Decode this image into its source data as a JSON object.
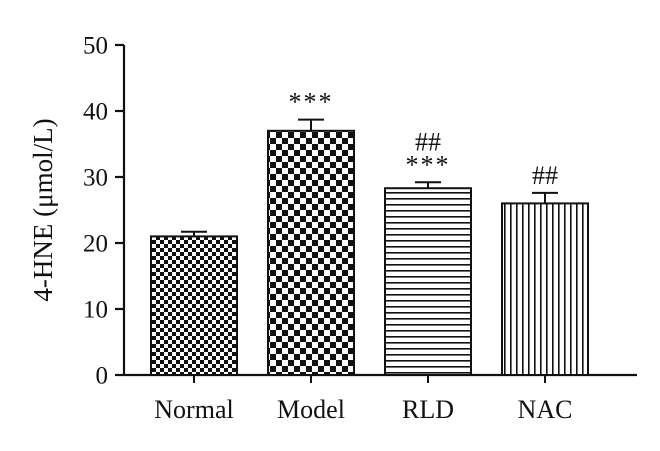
{
  "chart_data": {
    "type": "bar",
    "title": "",
    "xlabel": "",
    "ylabel": "4-HNE (μmol/L)",
    "ylim": [
      0,
      50
    ],
    "yticks": [
      0,
      10,
      20,
      30,
      40,
      50
    ],
    "grid": false,
    "categories": [
      "Normal",
      "Model",
      "RLD",
      "NAC"
    ],
    "values": [
      21,
      37,
      28.3,
      26
    ],
    "error": [
      0.7,
      1.7,
      0.9,
      1.6
    ],
    "patterns": [
      "small-checker",
      "large-checker",
      "horizontal-stripes",
      "vertical-stripes"
    ],
    "annotations": [
      {
        "category": "Normal",
        "lines": []
      },
      {
        "category": "Model",
        "lines": [
          "***"
        ]
      },
      {
        "category": "RLD",
        "lines": [
          "##",
          "***"
        ]
      },
      {
        "category": "NAC",
        "lines": [
          "##"
        ]
      }
    ],
    "colors": {
      "ink": "#111111",
      "background": "#ffffff"
    }
  }
}
